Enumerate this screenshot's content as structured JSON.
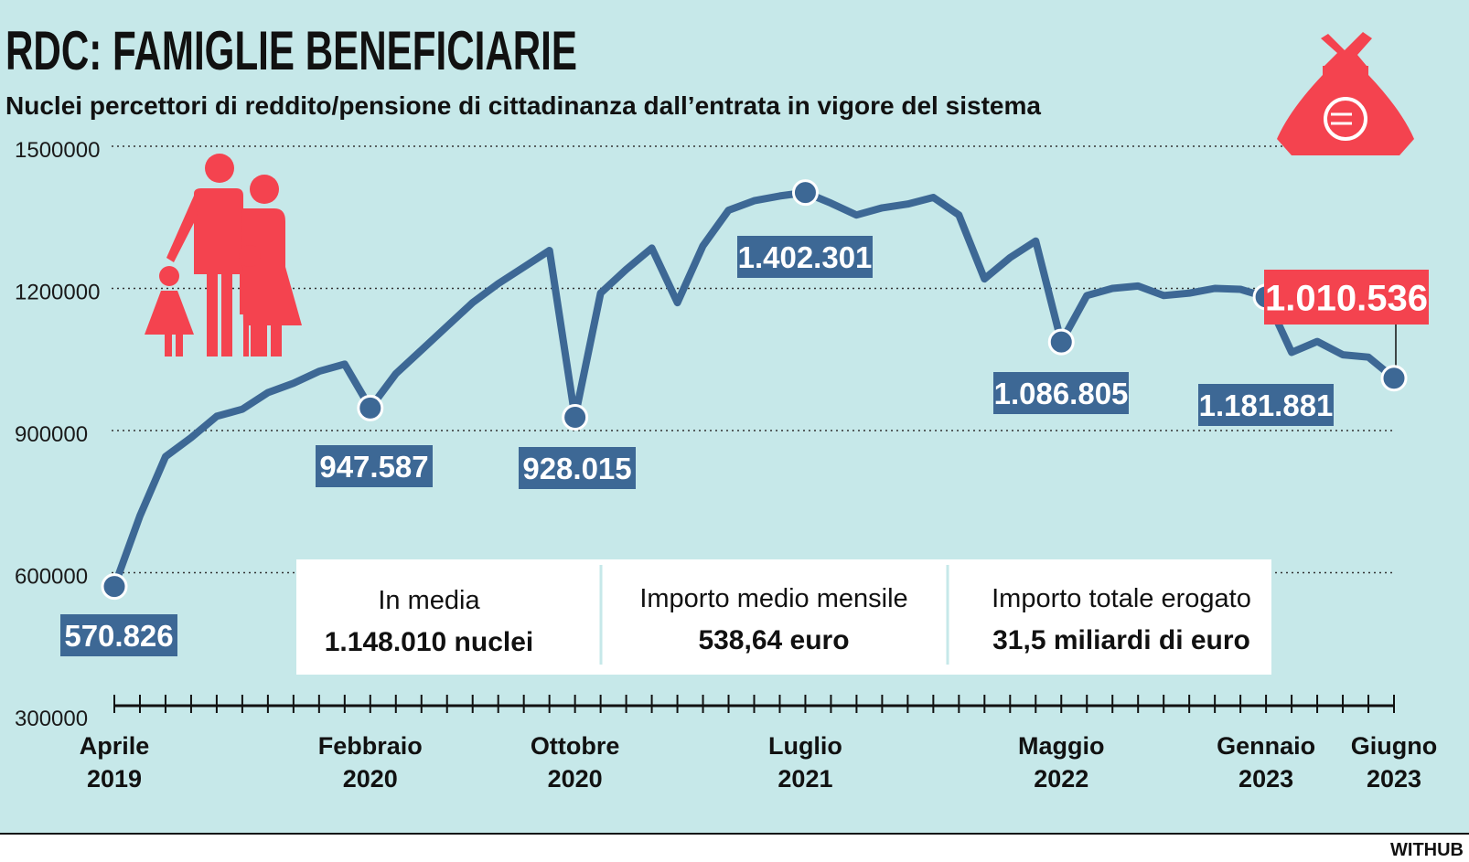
{
  "header": {
    "title": "RDC: FAMIGLIE BENEFICIARIE",
    "subtitle": "Nuclei percettori di reddito/pensione di cittadinanza dall’entrata in vigore del sistema"
  },
  "colors": {
    "background": "#c6e8e9",
    "line": "#3d6895",
    "accent": "#f4434f",
    "grid": "#333333",
    "text": "#1a1a1a",
    "box": "#ffffff"
  },
  "icons": {
    "family": "family-icon",
    "money_bag": "money-bag-euro-icon"
  },
  "chart_data": {
    "type": "line",
    "title": "RDC: FAMIGLIE BENEFICIARIE",
    "subtitle": "Nuclei percettori di reddito/pensione di cittadinanza dall’entrata in vigore del sistema",
    "xlabel": "",
    "ylabel": "",
    "ylim": [
      300000,
      1500000
    ],
    "yticks": [
      300000,
      600000,
      900000,
      1200000,
      1500000
    ],
    "ytick_labels": [
      "300000",
      "600000",
      "900000",
      "1200000",
      "1500000"
    ],
    "grid": true,
    "months": [
      "Apr 2019",
      "Mag 2019",
      "Giu 2019",
      "Lug 2019",
      "Ago 2019",
      "Set 2019",
      "Ott 2019",
      "Nov 2019",
      "Dic 2019",
      "Gen 2020",
      "Feb 2020",
      "Mar 2020",
      "Apr 2020",
      "Mag 2020",
      "Giu 2020",
      "Lug 2020",
      "Ago 2020",
      "Set 2020",
      "Ott 2020",
      "Nov 2020",
      "Dic 2020",
      "Gen 2021",
      "Feb 2021",
      "Mar 2021",
      "Apr 2021",
      "Mag 2021",
      "Giu 2021",
      "Lug 2021",
      "Ago 2021",
      "Set 2021",
      "Ott 2021",
      "Nov 2021",
      "Dic 2021",
      "Gen 2022",
      "Feb 2022",
      "Mar 2022",
      "Apr 2022",
      "Mag 2022",
      "Giu 2022",
      "Lug 2022",
      "Ago 2022",
      "Set 2022",
      "Ott 2022",
      "Nov 2022",
      "Dic 2022",
      "Gen 2023",
      "Feb 2023",
      "Mar 2023",
      "Apr 2023",
      "Mag 2023",
      "Giu 2023"
    ],
    "values": [
      570826,
      720000,
      845000,
      885000,
      930000,
      945000,
      980000,
      1000000,
      1025000,
      1040000,
      947587,
      1020000,
      1070000,
      1120000,
      1170000,
      1210000,
      1245000,
      1280000,
      928015,
      1190000,
      1240000,
      1285000,
      1170000,
      1290000,
      1365000,
      1385000,
      1395000,
      1402301,
      1380000,
      1355000,
      1370000,
      1378000,
      1392000,
      1355000,
      1220000,
      1265000,
      1300000,
      1086805,
      1185000,
      1200000,
      1205000,
      1185000,
      1190000,
      1200000,
      1198000,
      1181881,
      1065000,
      1088000,
      1060000,
      1055000,
      1010536
    ],
    "x_axis_labels": [
      {
        "index": 0,
        "month": "Aprile",
        "year": "2019"
      },
      {
        "index": 10,
        "month": "Febbraio",
        "year": "2020"
      },
      {
        "index": 18,
        "month": "Ottobre",
        "year": "2020"
      },
      {
        "index": 27,
        "month": "Luglio",
        "year": "2021"
      },
      {
        "index": 37,
        "month": "Maggio",
        "year": "2022"
      },
      {
        "index": 45,
        "month": "Gennaio",
        "year": "2023"
      },
      {
        "index": 50,
        "month": "Giugno",
        "year": "2023"
      }
    ],
    "annotations": [
      {
        "index": 0,
        "text": "570.826",
        "highlight": false
      },
      {
        "index": 10,
        "text": "947.587",
        "highlight": false
      },
      {
        "index": 18,
        "text": "928.015",
        "highlight": false
      },
      {
        "index": 27,
        "text": "1.402.301",
        "highlight": false
      },
      {
        "index": 37,
        "text": "1.086.805",
        "highlight": false
      },
      {
        "index": 45,
        "text": "1.181.881",
        "highlight": false
      },
      {
        "index": 50,
        "text": "1.010.536",
        "highlight": true
      }
    ]
  },
  "stats": [
    {
      "label": "In media",
      "value": "1.148.010 nuclei"
    },
    {
      "label": "Importo medio mensile",
      "value": "538,64 euro"
    },
    {
      "label": "Importo totale erogato",
      "value": "31,5 miliardi di euro"
    }
  ],
  "credit": "WITHUB"
}
